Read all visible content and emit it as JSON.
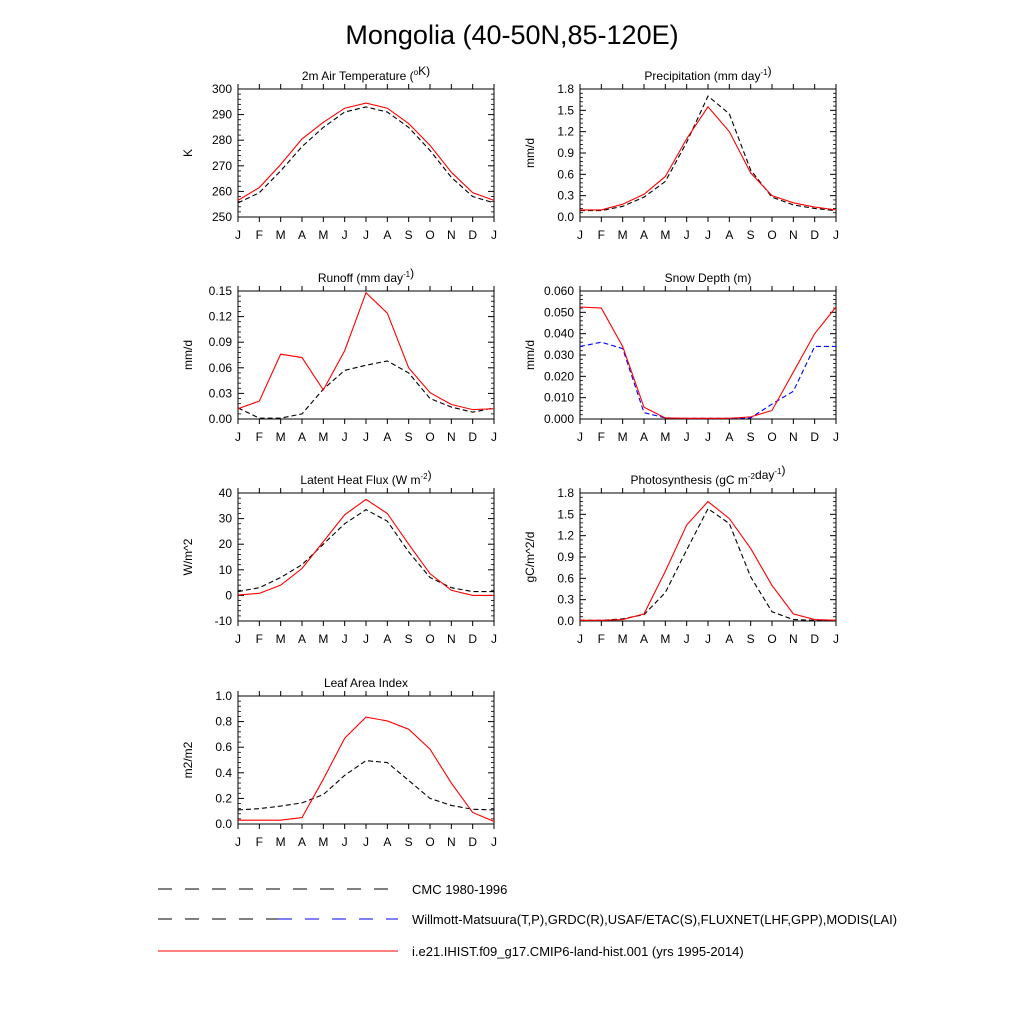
{
  "figure": {
    "title": "Mongolia (40-50N,85-120E)",
    "months": [
      "J",
      "F",
      "M",
      "A",
      "M",
      "J",
      "J",
      "A",
      "S",
      "O",
      "N",
      "D",
      "J"
    ]
  },
  "legend": {
    "entries": [
      {
        "label": "CMC 1980-1996",
        "color": "#000000",
        "style": "dashed"
      },
      {
        "label": "Willmott-Matsuura(T,P),GRDC(R),USAF/ETAC(S),FLUXNET(LHF,GPP),MODIS(LAI)",
        "color": "#000000",
        "style": "dashed",
        "alt_color": "#0000ff"
      },
      {
        "label": "i.e21.IHIST.f09_g17.CMIP6-land-hist.001 (yrs 1995-2014)",
        "color": "#ff0000",
        "style": "solid"
      }
    ]
  },
  "colors": {
    "model": "#ff0000",
    "obs": "#000000",
    "cmc": "#0000ff"
  },
  "chart_data": [
    {
      "id": "temp",
      "type": "line",
      "title": "2m Air Temperature (°K)",
      "title_parts": [
        [
          "2m Air Temperature (",
          ""
        ],
        [
          "o",
          "sup"
        ],
        [
          "K)",
          ""
        ]
      ],
      "ylabel": "K",
      "ylim": [
        250,
        300
      ],
      "yticks": [
        "250",
        "260",
        "270",
        "280",
        "290",
        "300"
      ],
      "ytick_values": [
        250,
        260,
        270,
        280,
        290,
        300
      ],
      "x": [
        "J",
        "F",
        "M",
        "A",
        "M",
        "J",
        "J",
        "A",
        "S",
        "O",
        "N",
        "D",
        "J"
      ],
      "series": [
        {
          "role": "obs",
          "color": "#000000",
          "dash": true,
          "values": [
            255.5,
            259.5,
            268,
            277.5,
            285,
            291,
            293,
            291,
            285,
            276,
            265.5,
            258,
            255.5
          ]
        },
        {
          "role": "model",
          "color": "#ff0000",
          "dash": false,
          "values": [
            256.5,
            261.5,
            270.5,
            280.5,
            287,
            292.5,
            294.5,
            292.5,
            286.5,
            278,
            267.5,
            259.5,
            256.5
          ]
        }
      ]
    },
    {
      "id": "precip",
      "type": "line",
      "title": "Precipitation (mm day-1)",
      "title_parts": [
        [
          "Precipitation (mm day",
          ""
        ],
        [
          "-1",
          "sup"
        ],
        [
          ")",
          ""
        ]
      ],
      "ylabel": "mm/d",
      "ylim": [
        0,
        1.8
      ],
      "yticks": [
        "0.0",
        "0.3",
        "0.6",
        "0.9",
        "1.2",
        "1.5",
        "1.8"
      ],
      "ytick_values": [
        0,
        0.3,
        0.6,
        0.9,
        1.2,
        1.5,
        1.8
      ],
      "x": [
        "J",
        "F",
        "M",
        "A",
        "M",
        "J",
        "J",
        "A",
        "S",
        "O",
        "N",
        "D",
        "J"
      ],
      "series": [
        {
          "role": "obs",
          "color": "#000000",
          "dash": true,
          "values": [
            0.09,
            0.09,
            0.15,
            0.28,
            0.5,
            1.05,
            1.7,
            1.45,
            0.66,
            0.28,
            0.17,
            0.12,
            0.09
          ]
        },
        {
          "role": "model",
          "color": "#ff0000",
          "dash": false,
          "values": [
            0.1,
            0.1,
            0.18,
            0.32,
            0.57,
            1.1,
            1.55,
            1.2,
            0.62,
            0.3,
            0.2,
            0.14,
            0.1
          ]
        }
      ]
    },
    {
      "id": "runoff",
      "type": "line",
      "title": "Runoff (mm day-1)",
      "title_parts": [
        [
          "Runoff (mm day",
          ""
        ],
        [
          "-1",
          "sup"
        ],
        [
          ")",
          ""
        ]
      ],
      "ylabel": "mm/d",
      "ylim": [
        0,
        0.15
      ],
      "yticks": [
        "0.00",
        "0.03",
        "0.06",
        "0.09",
        "0.12",
        "0.15"
      ],
      "ytick_values": [
        0,
        0.03,
        0.06,
        0.09,
        0.12,
        0.15
      ],
      "x": [
        "J",
        "F",
        "M",
        "A",
        "M",
        "J",
        "J",
        "A",
        "S",
        "O",
        "N",
        "D",
        "J"
      ],
      "series": [
        {
          "role": "obs",
          "color": "#000000",
          "dash": true,
          "values": [
            0.013,
            0.001,
            0.001,
            0.006,
            0.035,
            0.057,
            0.063,
            0.068,
            0.054,
            0.024,
            0.014,
            0.008,
            0.013
          ]
        },
        {
          "role": "model",
          "color": "#ff0000",
          "dash": false,
          "values": [
            0.012,
            0.021,
            0.076,
            0.072,
            0.034,
            0.08,
            0.148,
            0.124,
            0.06,
            0.031,
            0.017,
            0.011,
            0.012
          ]
        }
      ]
    },
    {
      "id": "snow",
      "type": "line",
      "title": "Snow Depth (m)",
      "title_parts": [
        [
          "Snow Depth (m)",
          ""
        ]
      ],
      "ylabel": "mm/d",
      "ylim": [
        0,
        0.06
      ],
      "yticks": [
        "0.000",
        "0.010",
        "0.020",
        "0.030",
        "0.040",
        "0.050",
        "0.060"
      ],
      "ytick_values": [
        0,
        0.01,
        0.02,
        0.03,
        0.04,
        0.05,
        0.06
      ],
      "x": [
        "J",
        "F",
        "M",
        "A",
        "M",
        "J",
        "J",
        "A",
        "S",
        "O",
        "N",
        "D",
        "J"
      ],
      "series": [
        {
          "role": "obs",
          "color": "#000000",
          "dash": true,
          "values": [
            0,
            0,
            0,
            0,
            0,
            0,
            0,
            0,
            0,
            0,
            0,
            0,
            0
          ]
        },
        {
          "role": "cmc",
          "color": "#0000ff",
          "dash": true,
          "values": [
            0.034,
            0.036,
            0.033,
            0.003,
            0.0005,
            0.0003,
            0.0003,
            0.0003,
            0.0005,
            0.007,
            0.013,
            0.034,
            0.034
          ]
        },
        {
          "role": "model",
          "color": "#ff0000",
          "dash": false,
          "values": [
            0.0525,
            0.052,
            0.034,
            0.0055,
            0.0005,
            0.0003,
            0.0003,
            0.0003,
            0.001,
            0.004,
            0.022,
            0.04,
            0.0525
          ]
        }
      ]
    },
    {
      "id": "lhf",
      "type": "line",
      "title": "Latent Heat Flux (W m-2)",
      "title_parts": [
        [
          "Latent Heat Flux (W m",
          ""
        ],
        [
          "-2",
          "sup"
        ],
        [
          ")",
          ""
        ]
      ],
      "ylabel": "W/m^2",
      "ylim": [
        -10,
        40
      ],
      "yticks": [
        "-10",
        "0",
        "10",
        "20",
        "30",
        "40"
      ],
      "ytick_values": [
        -10,
        0,
        10,
        20,
        30,
        40
      ],
      "x": [
        "J",
        "F",
        "M",
        "A",
        "M",
        "J",
        "J",
        "A",
        "S",
        "O",
        "N",
        "D",
        "J"
      ],
      "series": [
        {
          "role": "obs",
          "color": "#000000",
          "dash": true,
          "values": [
            1.5,
            3,
            7,
            12,
            20,
            28,
            33.5,
            29,
            17,
            7,
            3,
            1.5,
            1.5
          ]
        },
        {
          "role": "model",
          "color": "#ff0000",
          "dash": false,
          "values": [
            0.2,
            0.8,
            4,
            10.5,
            21,
            31.5,
            37.5,
            32,
            20,
            8.5,
            2,
            0,
            0
          ]
        }
      ]
    },
    {
      "id": "gpp",
      "type": "line",
      "title": "Photosynthesis (gC m-2day-1)",
      "title_parts": [
        [
          "Photosynthesis (gC m",
          ""
        ],
        [
          "-2",
          "sup"
        ],
        [
          "day",
          ""
        ],
        [
          "-1",
          "sup"
        ],
        [
          ")",
          ""
        ]
      ],
      "ylabel": "gC/m^2/d",
      "ylim": [
        0,
        1.8
      ],
      "yticks": [
        "0.0",
        "0.3",
        "0.6",
        "0.9",
        "1.2",
        "1.5",
        "1.8"
      ],
      "ytick_values": [
        0,
        0.3,
        0.6,
        0.9,
        1.2,
        1.5,
        1.8
      ],
      "x": [
        "J",
        "F",
        "M",
        "A",
        "M",
        "J",
        "J",
        "A",
        "S",
        "O",
        "N",
        "D",
        "J"
      ],
      "series": [
        {
          "role": "obs",
          "color": "#000000",
          "dash": true,
          "values": [
            0.01,
            0.01,
            0.03,
            0.09,
            0.4,
            1.0,
            1.58,
            1.37,
            0.62,
            0.13,
            0.02,
            0.01,
            0.01
          ]
        },
        {
          "role": "model",
          "color": "#ff0000",
          "dash": false,
          "values": [
            0.01,
            0.01,
            0.02,
            0.1,
            0.7,
            1.35,
            1.68,
            1.44,
            1.02,
            0.5,
            0.1,
            0.02,
            0.01
          ]
        }
      ]
    },
    {
      "id": "lai",
      "type": "line",
      "title": "Leaf Area Index",
      "title_parts": [
        [
          "Leaf Area Index",
          ""
        ]
      ],
      "ylabel": "m2/m2",
      "ylim": [
        0,
        1.0
      ],
      "yticks": [
        "0.0",
        "0.2",
        "0.4",
        "0.6",
        "0.8",
        "1.0"
      ],
      "ytick_values": [
        0,
        0.2,
        0.4,
        0.6,
        0.8,
        1.0
      ],
      "x": [
        "J",
        "F",
        "M",
        "A",
        "M",
        "J",
        "J",
        "A",
        "S",
        "O",
        "N",
        "D",
        "J"
      ],
      "series": [
        {
          "role": "obs",
          "color": "#000000",
          "dash": true,
          "values": [
            0.11,
            0.12,
            0.14,
            0.165,
            0.23,
            0.38,
            0.495,
            0.48,
            0.34,
            0.2,
            0.145,
            0.115,
            0.11
          ]
        },
        {
          "role": "model",
          "color": "#ff0000",
          "dash": false,
          "values": [
            0.03,
            0.03,
            0.03,
            0.05,
            0.35,
            0.67,
            0.835,
            0.805,
            0.74,
            0.585,
            0.32,
            0.09,
            0.02
          ]
        }
      ]
    }
  ]
}
